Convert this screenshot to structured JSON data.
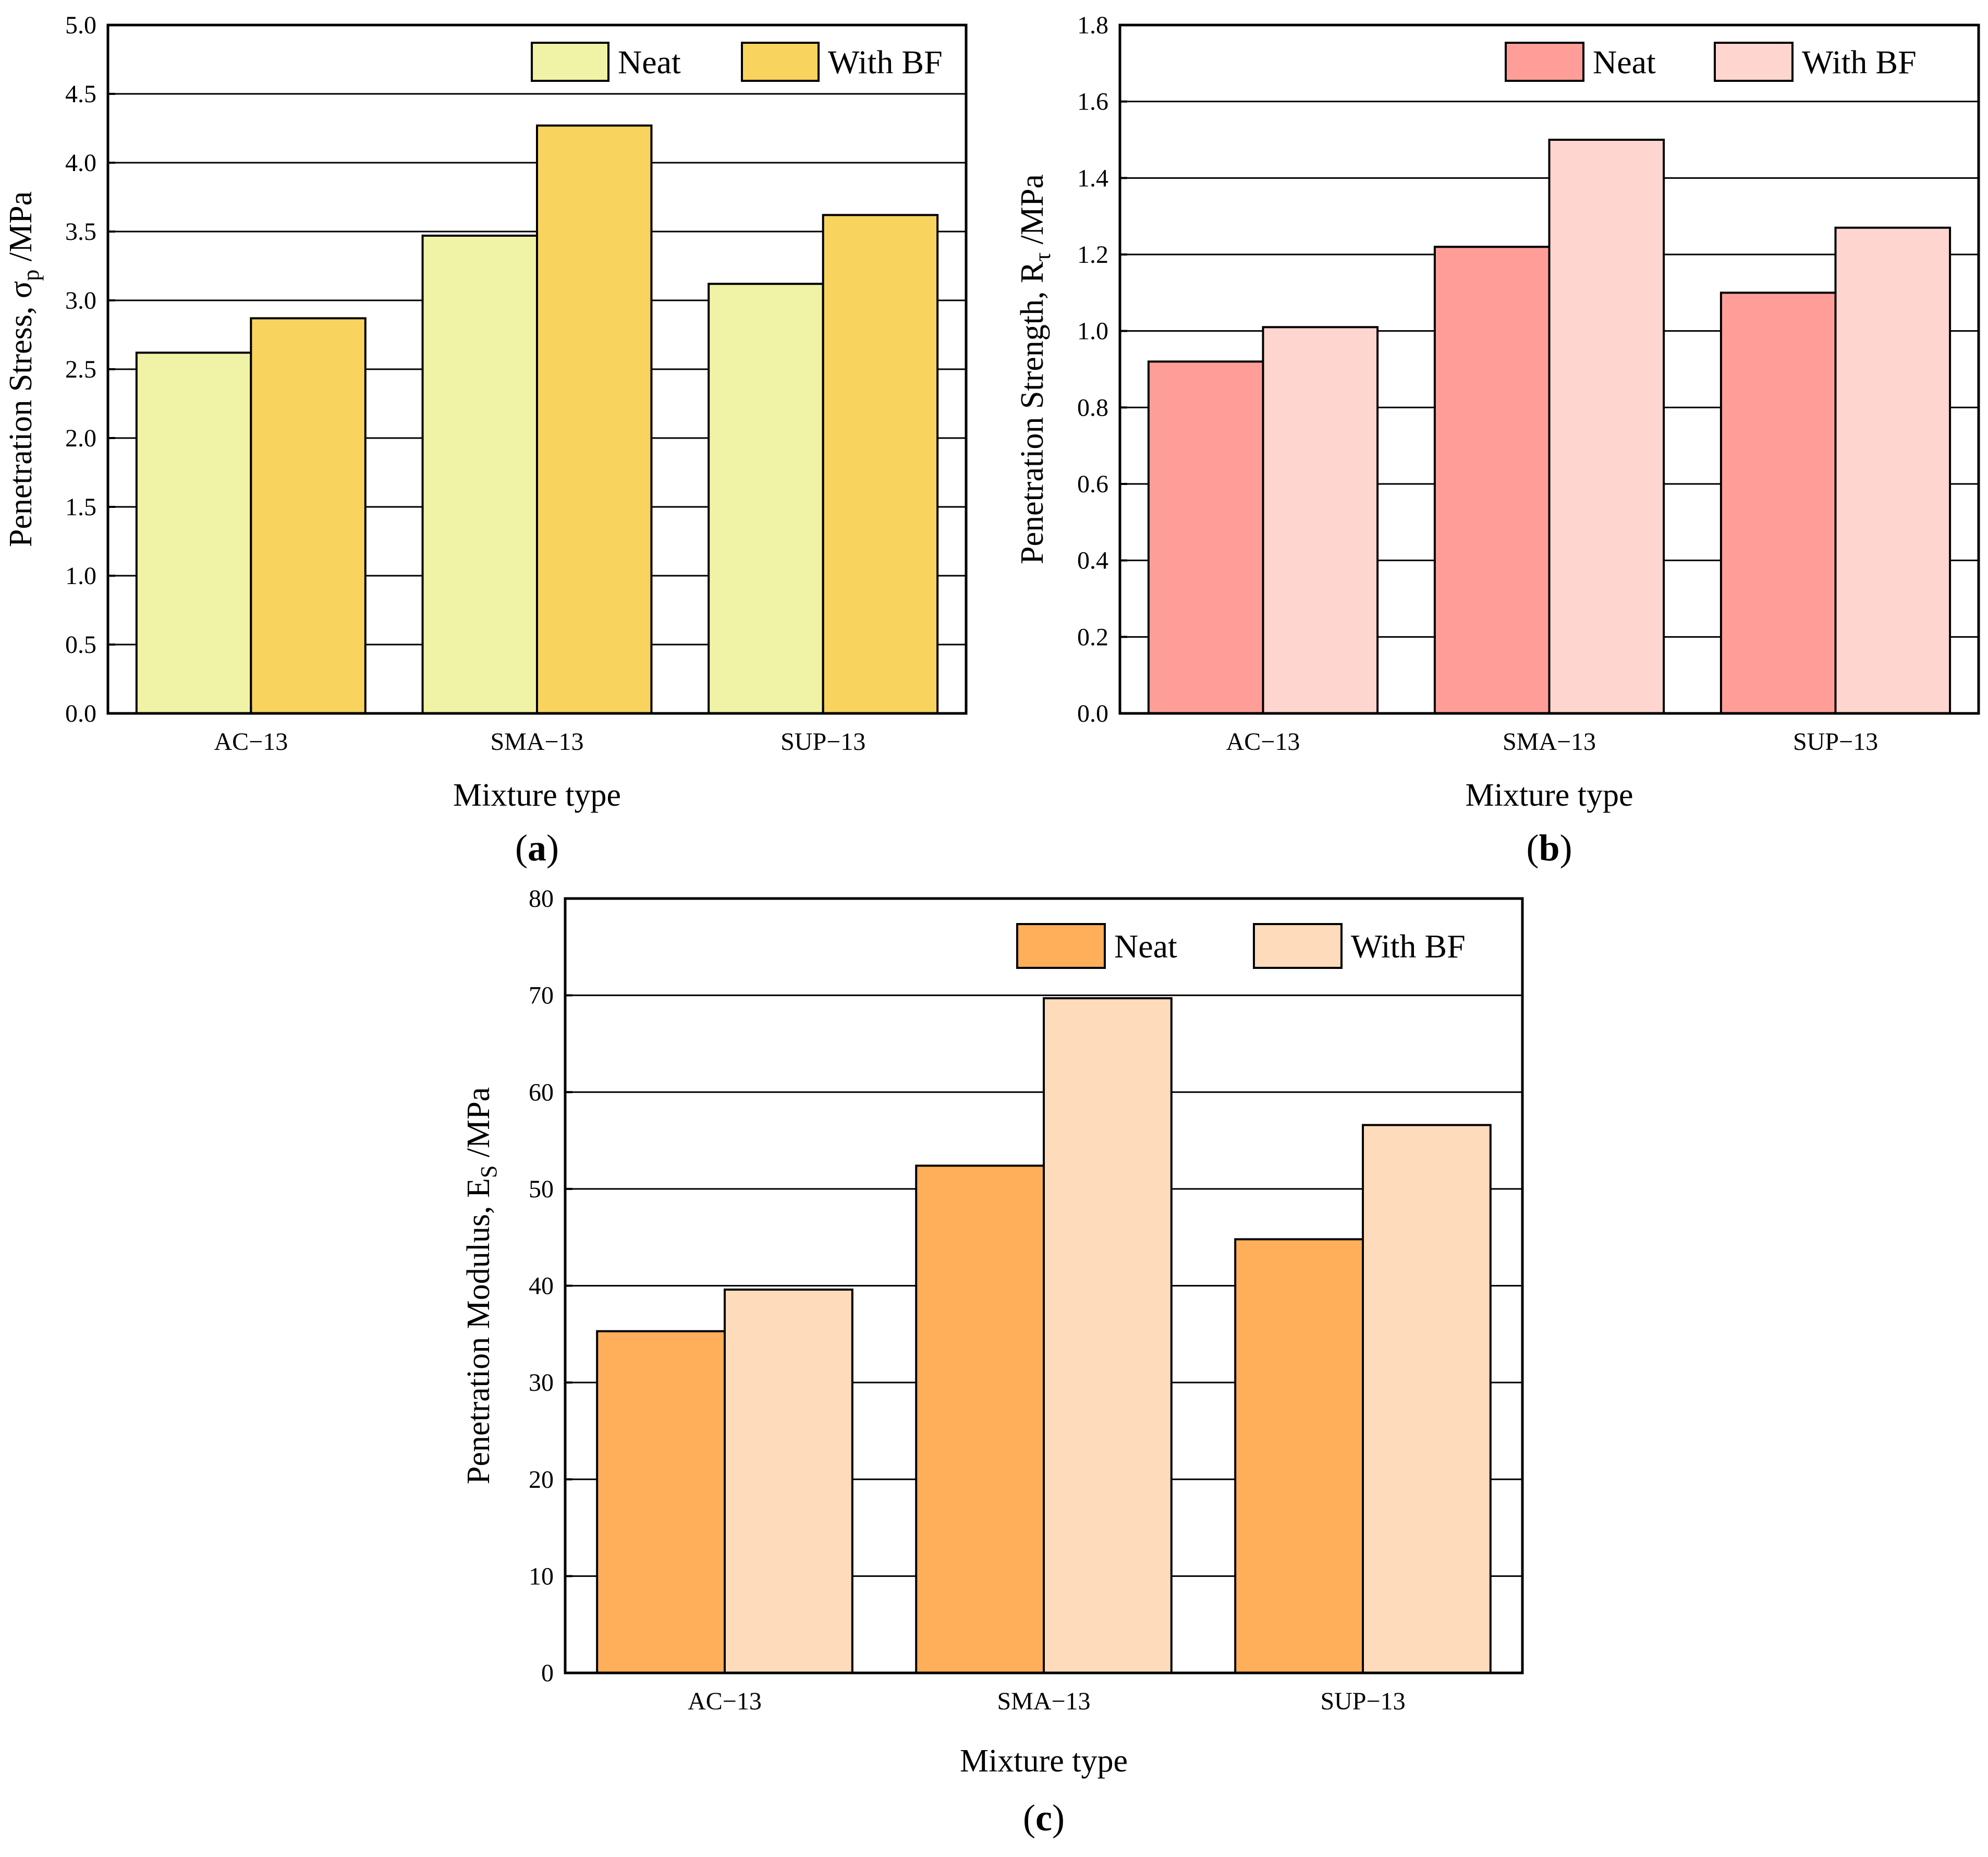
{
  "chart_data": [
    {
      "type": "bar",
      "panel": "a",
      "categories": [
        "AC−13",
        "SMA−13",
        "SUP−13"
      ],
      "series": [
        {
          "name": "Neat",
          "values": [
            2.62,
            3.47,
            3.12
          ],
          "color": "#F0F3A6"
        },
        {
          "name": "With BF",
          "values": [
            2.87,
            4.27,
            3.62
          ],
          "color": "#F8D35E"
        }
      ],
      "title": "",
      "xlabel": "Mixture type",
      "ylabel_main": "Penetration Stress, σ",
      "ylabel_sub": "p",
      "ylabel_unit": " /MPa",
      "ylim": [
        0,
        5.0
      ],
      "yticks": [
        "0.0",
        "0.5",
        "1.0",
        "1.5",
        "2.0",
        "2.5",
        "3.0",
        "3.5",
        "4.0",
        "4.5",
        "5.0"
      ],
      "grid": true,
      "legend_position": "top-right",
      "panel_label": "a"
    },
    {
      "type": "bar",
      "panel": "b",
      "categories": [
        "AC−13",
        "SMA−13",
        "SUP−13"
      ],
      "series": [
        {
          "name": "Neat",
          "values": [
            0.92,
            1.22,
            1.1
          ],
          "color": "#FF9E98"
        },
        {
          "name": "With BF",
          "values": [
            1.01,
            1.5,
            1.27
          ],
          "color": "#FED6CF"
        }
      ],
      "title": "",
      "xlabel": "Mixture type",
      "ylabel_main": "Penetration Strength, R",
      "ylabel_sub": "τ",
      "ylabel_unit": " /MPa",
      "ylim": [
        0,
        1.8
      ],
      "yticks": [
        "0.0",
        "0.2",
        "0.4",
        "0.6",
        "0.8",
        "1.0",
        "1.2",
        "1.4",
        "1.6",
        "1.8"
      ],
      "grid": true,
      "legend_position": "top-right",
      "panel_label": "b"
    },
    {
      "type": "bar",
      "panel": "c",
      "categories": [
        "AC−13",
        "SMA−13",
        "SUP−13"
      ],
      "series": [
        {
          "name": "Neat",
          "values": [
            35.3,
            52.4,
            44.8
          ],
          "color": "#FFAE5A"
        },
        {
          "name": "With BF",
          "values": [
            39.6,
            69.7,
            56.6
          ],
          "color": "#FEDBBA"
        }
      ],
      "title": "",
      "xlabel": "Mixture type",
      "ylabel_main": "Penetration Modulus, E",
      "ylabel_sub": "S",
      "ylabel_unit": " /MPa",
      "ylim": [
        0,
        80
      ],
      "yticks": [
        "0",
        "10",
        "20",
        "30",
        "40",
        "50",
        "60",
        "70",
        "80"
      ],
      "grid": true,
      "legend_position": "top-right",
      "panel_label": "c"
    }
  ]
}
